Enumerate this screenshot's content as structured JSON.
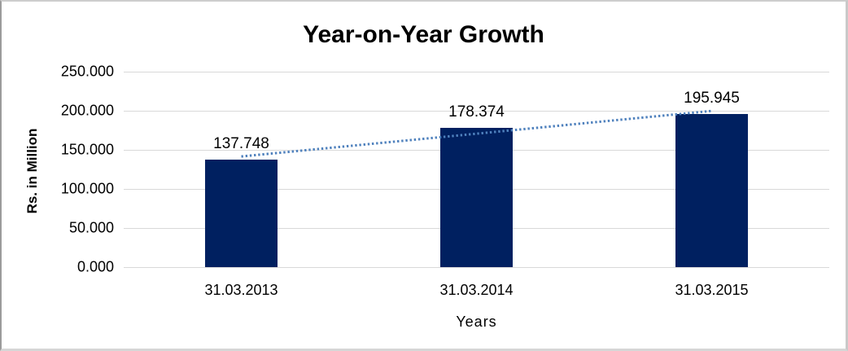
{
  "frame": {
    "background": "#ffffff",
    "border_color": "#c9c9c9"
  },
  "chart_data": {
    "type": "bar",
    "title": "Year-on-Year Growth",
    "xlabel": "Years",
    "ylabel": "Rs. in Million",
    "categories": [
      "31.03.2013",
      "31.03.2014",
      "31.03.2015"
    ],
    "values": [
      137.748,
      178.374,
      195.945
    ],
    "data_labels": [
      "137.748",
      "178.374",
      "195.945"
    ],
    "ylim": [
      0,
      250
    ],
    "ytick_labels": [
      "0.000",
      "50.000",
      "100.000",
      "150.000",
      "200.000",
      "250.000"
    ],
    "grid": true,
    "legend_position": "none",
    "bar_color": "#002060",
    "gridline_color": "#d9d9d9",
    "text_color": "#000000",
    "trendline": {
      "type": "linear",
      "style": "dotted",
      "color": "#4f81bd"
    }
  }
}
